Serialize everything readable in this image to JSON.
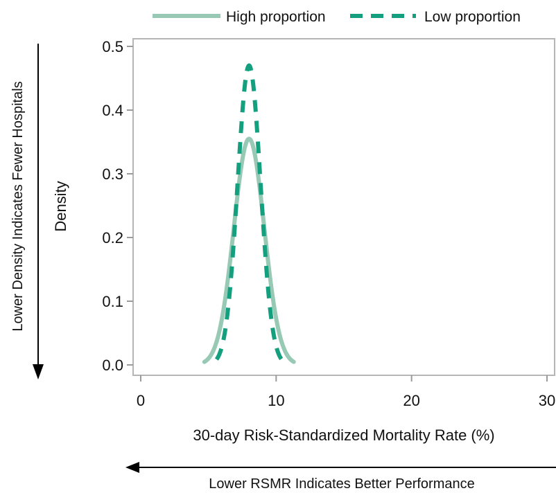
{
  "chart_data": {
    "type": "line",
    "xlabel": "30-day Risk-Standardized Mortality Rate (%)",
    "ylabel": "Density",
    "xlim": [
      0,
      30
    ],
    "ylim": [
      0,
      0.5
    ],
    "xticks": [
      "0",
      "10",
      "20",
      "30"
    ],
    "yticks": [
      "0.0",
      "0.1",
      "0.2",
      "0.3",
      "0.4",
      "0.5"
    ],
    "grid": false,
    "legend_position": "top",
    "series": [
      {
        "name": "High proportion",
        "line_style": "solid",
        "color": "#97c9b5",
        "mean": 8.0,
        "peak": 0.355,
        "x_min": 4.7,
        "x_max": 11.3
      },
      {
        "name": "Low proportion",
        "line_style": "dashed",
        "color": "#14a07f",
        "mean": 8.0,
        "peak": 0.47,
        "x_min": 5.6,
        "x_max": 10.4
      }
    ],
    "annotations": {
      "y_arrow": "Lower Density Indicates Fewer Hospitals",
      "x_arrow": "Lower RSMR Indicates Better Performance"
    }
  }
}
